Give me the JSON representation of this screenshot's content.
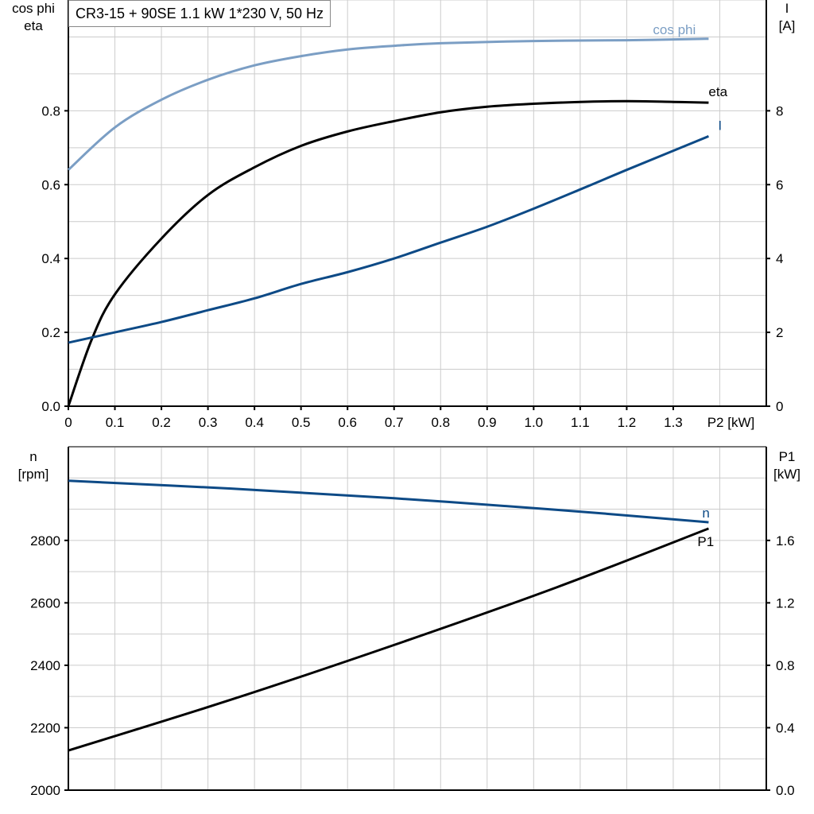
{
  "title": "CR3-15 + 90SE   1.1 kW   1*230 V, 50 Hz",
  "colors": {
    "cos_phi": "#7b9ec4",
    "eta": "#000000",
    "I": "#0d4a86",
    "n": "#0d4a86",
    "P1": "#000000",
    "grid": "#cccccc"
  },
  "chart_data": [
    {
      "type": "line",
      "xlabel": "P2 [kW]",
      "xlim": [
        0,
        1.5
      ],
      "x_ticks": [
        "0",
        "0.1",
        "0.2",
        "0.3",
        "0.4",
        "0.5",
        "0.6",
        "0.7",
        "0.8",
        "0.9",
        "1.0",
        "1.1",
        "1.2",
        "1.3"
      ],
      "ylabel_left": [
        "cos phi",
        "eta"
      ],
      "ylim_left": [
        0,
        1.1
      ],
      "y_ticks_left": [
        "0.0",
        "0.2",
        "0.4",
        "0.6",
        "0.8"
      ],
      "ylabel_right": [
        "I",
        "[A]"
      ],
      "ylim_right": [
        0,
        11
      ],
      "y_ticks_right": [
        "0",
        "2",
        "4",
        "6",
        "8"
      ],
      "grid": true,
      "series": [
        {
          "name": "cos phi",
          "axis": "left",
          "x": [
            0,
            0.1,
            0.2,
            0.3,
            0.4,
            0.5,
            0.6,
            0.7,
            0.8,
            1.0,
            1.2,
            1.376
          ],
          "y": [
            0.64,
            0.755,
            0.83,
            0.884,
            0.923,
            0.948,
            0.966,
            0.976,
            0.983,
            0.989,
            0.991,
            0.995
          ]
        },
        {
          "name": "eta",
          "axis": "left",
          "x": [
            0,
            0.05,
            0.1,
            0.2,
            0.3,
            0.4,
            0.5,
            0.6,
            0.7,
            0.8,
            0.9,
            1.0,
            1.1,
            1.2,
            1.3,
            1.376
          ],
          "y": [
            0,
            0.18,
            0.303,
            0.454,
            0.572,
            0.647,
            0.705,
            0.744,
            0.772,
            0.796,
            0.811,
            0.819,
            0.824,
            0.826,
            0.824,
            0.822
          ]
        },
        {
          "name": "I",
          "axis": "right",
          "x": [
            0,
            0.1,
            0.2,
            0.3,
            0.4,
            0.5,
            0.6,
            0.7,
            0.8,
            0.9,
            1.0,
            1.1,
            1.2,
            1.376
          ],
          "y": [
            1.72,
            2.0,
            2.28,
            2.6,
            2.92,
            3.31,
            3.63,
            4.0,
            4.43,
            4.86,
            5.35,
            5.87,
            6.4,
            7.31
          ]
        }
      ]
    },
    {
      "type": "line",
      "xlim": [
        0,
        1.5
      ],
      "ylabel_left": [
        "n",
        "[rpm]"
      ],
      "ylim_left": [
        2000,
        3100
      ],
      "y_ticks_left": [
        "2000",
        "2200",
        "2400",
        "2600",
        "2800"
      ],
      "ylabel_right": [
        "P1",
        "[kW]"
      ],
      "ylim_right": [
        0,
        2.2
      ],
      "y_ticks_right": [
        "0.0",
        "0.4",
        "0.8",
        "1.2",
        "1.6"
      ],
      "grid": true,
      "series": [
        {
          "name": "n",
          "axis": "left",
          "x": [
            0,
            0.35,
            0.7,
            1.05,
            1.376
          ],
          "y": [
            2991,
            2966,
            2935,
            2898,
            2858
          ]
        },
        {
          "name": "P1",
          "axis": "right",
          "x": [
            0,
            0.35,
            0.7,
            1.05,
            1.376
          ],
          "y": [
            0.254,
            0.58,
            0.93,
            1.3,
            1.676
          ]
        }
      ]
    }
  ]
}
